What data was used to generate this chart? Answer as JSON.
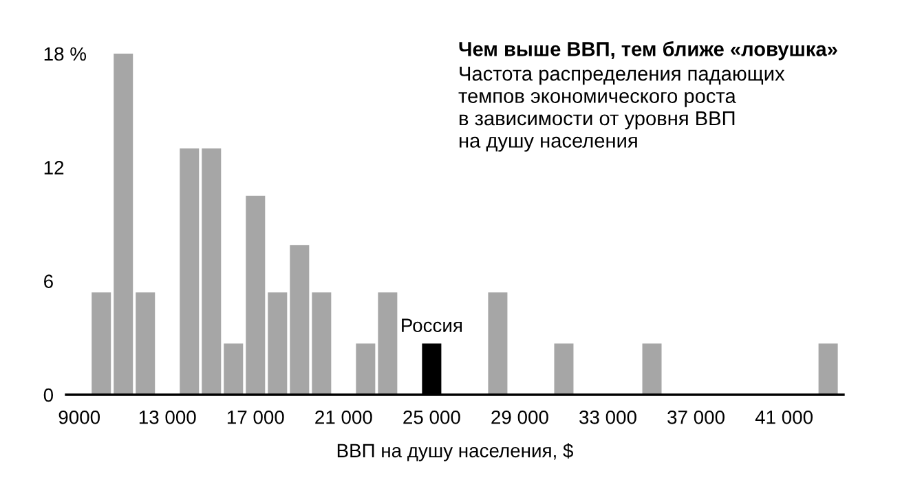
{
  "chart_data": {
    "type": "bar",
    "title": "Чем выше ВВП, тем ближе «ловушка»",
    "subtitle": "Частота распределения падающих\nтемпов экономического роста\nв зависимости от уровня ВВП\nна душу населения",
    "xlabel": "ВВП на душу населения, $",
    "x": [
      10000,
      11000,
      12000,
      14000,
      15000,
      16000,
      17000,
      18000,
      19000,
      20000,
      22000,
      23000,
      25000,
      28000,
      31000,
      35000,
      43000
    ],
    "values": [
      5.4,
      18,
      5.4,
      13,
      13,
      2.7,
      10.5,
      5.4,
      7.9,
      5.4,
      2.7,
      5.4,
      2.7,
      5.4,
      2.7,
      2.7,
      2.7
    ],
    "colors": [
      "#a6a6a6",
      "#a6a6a6",
      "#a6a6a6",
      "#a6a6a6",
      "#a6a6a6",
      "#a6a6a6",
      "#a6a6a6",
      "#a6a6a6",
      "#a6a6a6",
      "#a6a6a6",
      "#a6a6a6",
      "#a6a6a6",
      "#000000",
      "#a6a6a6",
      "#a6a6a6",
      "#a6a6a6",
      "#a6a6a6"
    ],
    "annotations": [
      {
        "text": "Россия",
        "x": 25000,
        "y": 2.7
      }
    ],
    "xlim": [
      8400,
      43700
    ],
    "xticks": [
      9000,
      {
        "value": 13000,
        "label": "13 000"
      },
      {
        "value": 17000,
        "label": "17 000"
      },
      {
        "value": 21000,
        "label": "21 000"
      },
      {
        "value": 25000,
        "label": "25 000"
      },
      {
        "value": 29000,
        "label": "29 000"
      },
      {
        "value": 33000,
        "label": "33 000"
      },
      {
        "value": 37000,
        "label": "37 000"
      },
      {
        "value": 41000,
        "label": "41 000"
      }
    ],
    "ylim": [
      0,
      18
    ],
    "yticks": [
      0,
      6,
      12,
      {
        "value": 18,
        "label": "18 %"
      }
    ],
    "grid": false,
    "legend": false
  }
}
